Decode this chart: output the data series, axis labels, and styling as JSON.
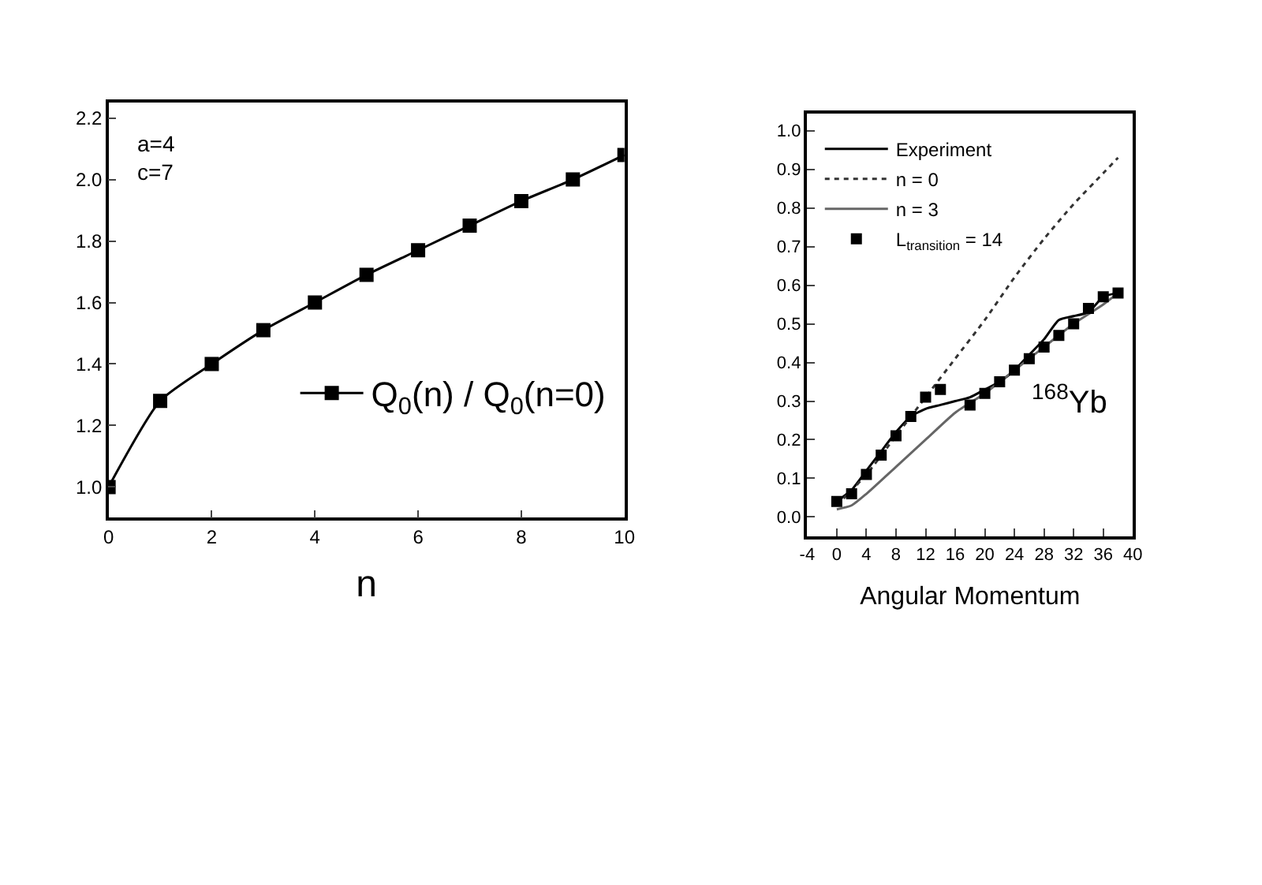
{
  "chart_data": [
    {
      "type": "line",
      "xlabel": "n",
      "x": [
        0,
        1,
        2,
        3,
        4,
        5,
        6,
        7,
        8,
        9,
        10
      ],
      "xlim": [
        0,
        10
      ],
      "xticks": [
        0,
        2,
        4,
        6,
        8,
        10
      ],
      "ylim": [
        0.9,
        2.25
      ],
      "yticks": [
        {
          "value": 1,
          "label": "1.0"
        },
        1.2,
        1.4,
        1.6,
        1.8,
        {
          "value": 2,
          "label": "2.0"
        },
        2.2
      ],
      "legend": "bottom right",
      "marker": "square",
      "line_style": "solid",
      "annotations": [
        "a=4",
        "c=7"
      ],
      "series": [
        {
          "name": "Q$_{0}$(n) / Q$_{0}$(n=0)",
          "color": "#000000",
          "values": [
            1.0,
            1.28,
            1.4,
            1.51,
            1.6,
            1.69,
            1.77,
            1.85,
            1.93,
            2.0,
            2.08
          ]
        }
      ]
    },
    {
      "type": "line",
      "xlabel": "Angular Momentum",
      "xlim": [
        -4,
        40
      ],
      "xticks": [
        -4,
        0,
        4,
        8,
        12,
        16,
        20,
        24,
        28,
        32,
        36,
        40
      ],
      "ylim": [
        -0.05,
        1.045
      ],
      "yticks": [
        {
          "value": 0,
          "label": "0.0"
        },
        0.1,
        0.2,
        0.3,
        0.4,
        0.5,
        0.6,
        0.7,
        0.8,
        0.9,
        {
          "value": 1,
          "label": "1.0"
        }
      ],
      "legend": "top left",
      "annotations": [
        "$^{168}$Yb"
      ],
      "series": [
        {
          "name": "Experiment",
          "type": "line",
          "color": "#000000",
          "line_style": "solid",
          "marker": "none",
          "x": [
            0,
            2,
            4,
            6,
            8,
            10,
            12,
            14,
            16,
            18,
            20,
            22,
            24,
            26,
            28,
            30,
            32,
            34,
            36,
            38
          ],
          "values": [
            0.04,
            0.07,
            0.12,
            0.17,
            0.22,
            0.26,
            0.28,
            0.29,
            0.3,
            0.31,
            0.33,
            0.35,
            0.38,
            0.42,
            0.46,
            0.51,
            0.52,
            0.53,
            0.57,
            0.58
          ]
        },
        {
          "name": "n = 0",
          "type": "line",
          "color": "#333333",
          "line_style": "dotted",
          "marker": "none",
          "x": [
            0,
            4,
            8,
            12,
            16,
            20,
            24,
            28,
            32,
            36,
            38
          ],
          "values": [
            0.03,
            0.11,
            0.21,
            0.31,
            0.41,
            0.51,
            0.62,
            0.72,
            0.81,
            0.89,
            0.93
          ]
        },
        {
          "name": "n = 3",
          "type": "line",
          "color": "#666666",
          "line_style": "solid",
          "marker": "none",
          "x": [
            0,
            2,
            4,
            8,
            12,
            16,
            20,
            24,
            28,
            32,
            36,
            38
          ],
          "values": [
            0.02,
            0.03,
            0.06,
            0.13,
            0.2,
            0.27,
            0.32,
            0.38,
            0.44,
            0.5,
            0.55,
            0.58
          ]
        },
        {
          "name": "L$_{transition}$ = 14",
          "type": "scatter",
          "color": "#000000",
          "marker": "square",
          "x": [
            0,
            2,
            4,
            6,
            8,
            10,
            12,
            14,
            18,
            20,
            22,
            24,
            26,
            28,
            30,
            32,
            34,
            36,
            38
          ],
          "values": [
            0.04,
            0.06,
            0.11,
            0.16,
            0.21,
            0.26,
            0.31,
            0.33,
            0.29,
            0.32,
            0.35,
            0.38,
            0.41,
            0.44,
            0.47,
            0.5,
            0.54,
            0.57,
            0.58
          ]
        }
      ]
    }
  ]
}
